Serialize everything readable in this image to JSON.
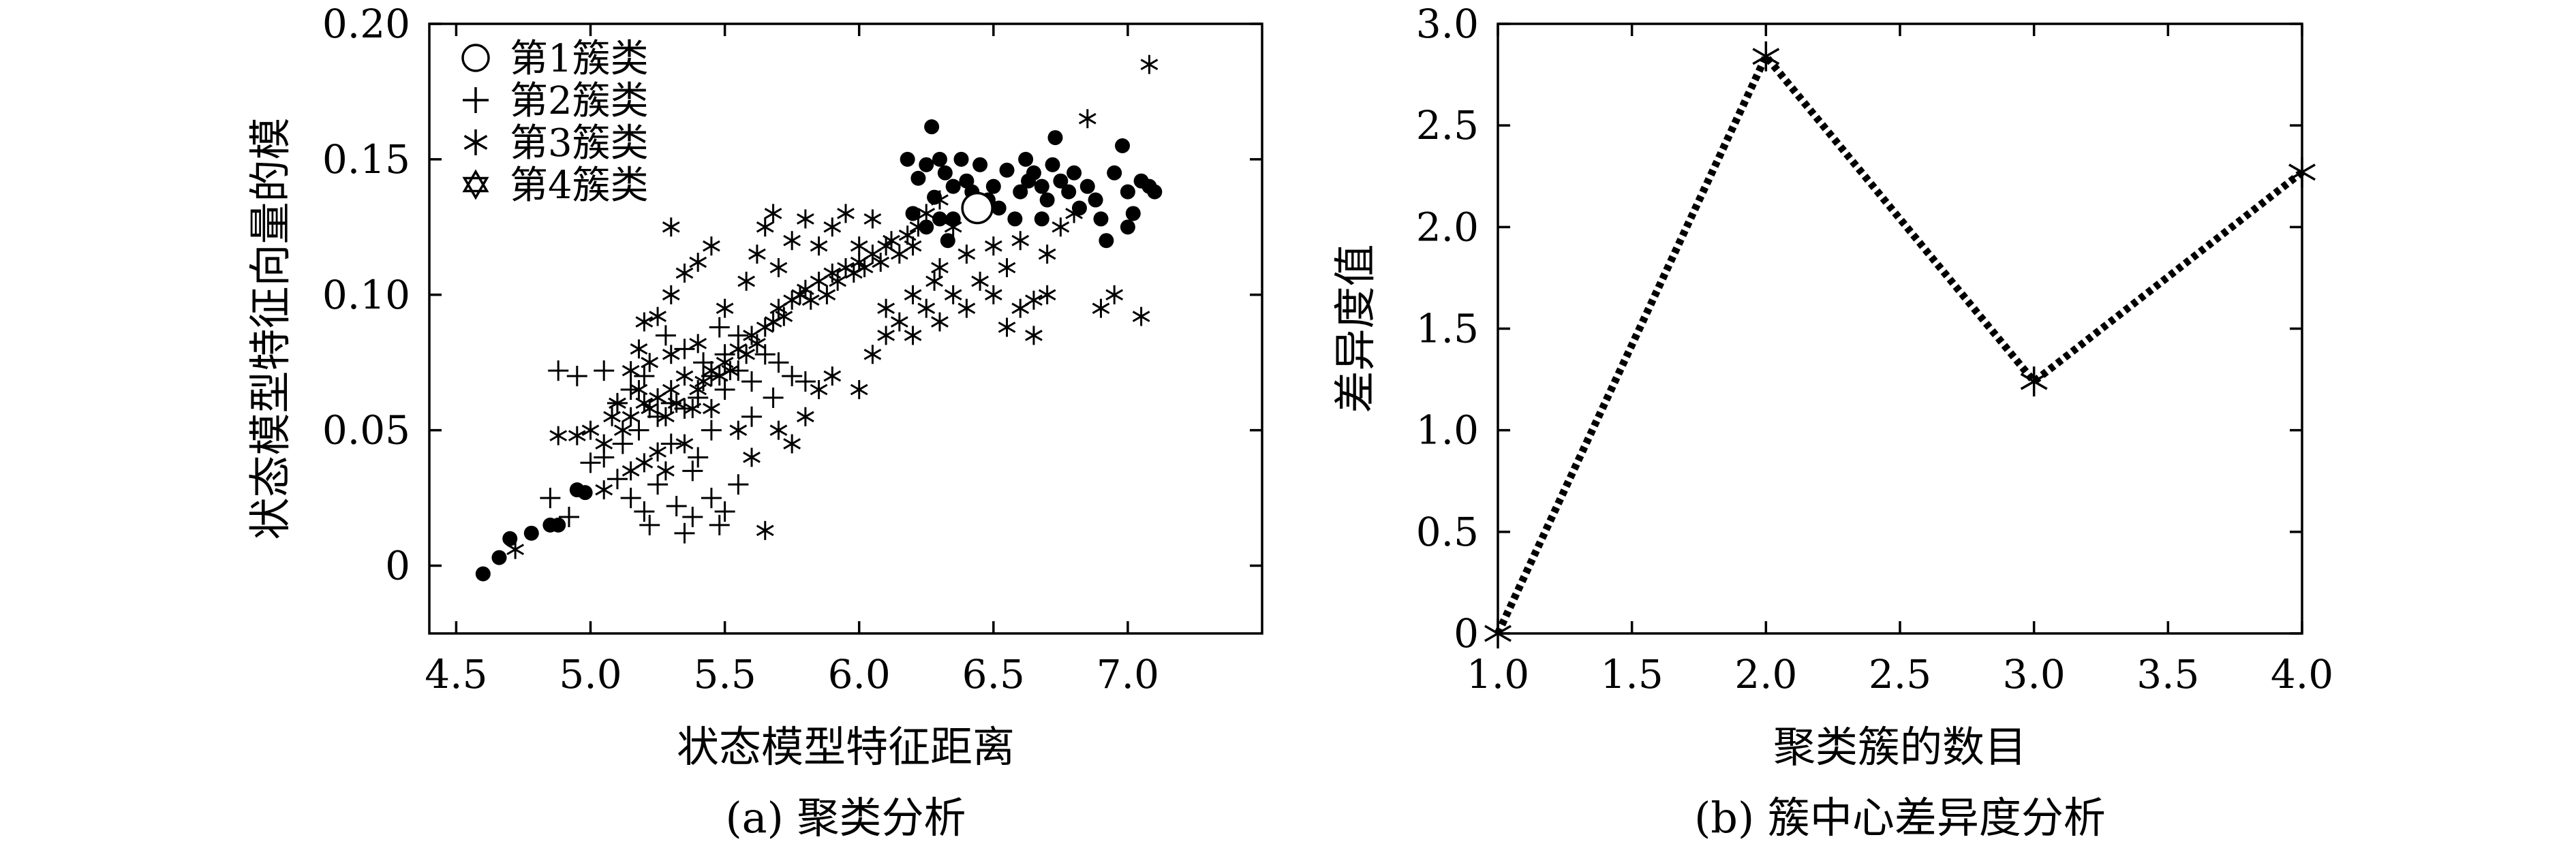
{
  "chart_data": [
    {
      "type": "scatter",
      "caption": "(a) 聚类分析",
      "xlabel": "状态模型特征距离",
      "ylabel": "状态模型特征向量的模",
      "xlim": [
        4.4,
        7.5
      ],
      "ylim": [
        -0.025,
        0.2
      ],
      "xticks": [
        "4.5",
        "5.0",
        "5.5",
        "6.0",
        "6.5",
        "7.0"
      ],
      "xtick_values": [
        4.5,
        5.0,
        5.5,
        6.0,
        6.5,
        7.0
      ],
      "yticks": [
        "0",
        "0.05",
        "0.10",
        "0.15",
        "0.20"
      ],
      "ytick_values": [
        0,
        0.05,
        0.1,
        0.15,
        0.2
      ],
      "legend_position": "top-left",
      "series": [
        {
          "name": "第1簇类",
          "marker": "circle",
          "centroid": [
            [
              6.44,
              0.132
            ]
          ],
          "points": [
            [
              4.6,
              -0.003
            ],
            [
              4.66,
              0.003
            ],
            [
              4.7,
              0.01
            ],
            [
              4.78,
              0.012
            ],
            [
              4.85,
              0.015
            ],
            [
              4.88,
              0.015
            ],
            [
              4.95,
              0.028
            ],
            [
              4.98,
              0.027
            ],
            [
              6.18,
              0.15
            ],
            [
              6.22,
              0.143
            ],
            [
              6.25,
              0.148
            ],
            [
              6.27,
              0.162
            ],
            [
              6.3,
              0.15
            ],
            [
              6.32,
              0.145
            ],
            [
              6.35,
              0.14
            ],
            [
              6.38,
              0.15
            ],
            [
              6.2,
              0.13
            ],
            [
              6.25,
              0.125
            ],
            [
              6.3,
              0.128
            ],
            [
              6.4,
              0.142
            ],
            [
              6.45,
              0.148
            ],
            [
              6.5,
              0.14
            ],
            [
              6.55,
              0.146
            ],
            [
              6.6,
              0.138
            ],
            [
              6.62,
              0.15
            ],
            [
              6.65,
              0.145
            ],
            [
              6.68,
              0.14
            ],
            [
              6.7,
              0.135
            ],
            [
              6.72,
              0.148
            ],
            [
              6.75,
              0.142
            ],
            [
              6.78,
              0.138
            ],
            [
              6.8,
              0.145
            ],
            [
              6.82,
              0.132
            ],
            [
              6.85,
              0.14
            ],
            [
              6.88,
              0.135
            ],
            [
              6.9,
              0.128
            ],
            [
              6.95,
              0.145
            ],
            [
              6.98,
              0.155
            ],
            [
              7.0,
              0.138
            ],
            [
              7.02,
              0.13
            ],
            [
              7.05,
              0.142
            ],
            [
              7.08,
              0.14
            ],
            [
              7.1,
              0.138
            ],
            [
              6.58,
              0.128
            ],
            [
              6.48,
              0.135
            ],
            [
              6.35,
              0.128
            ],
            [
              6.42,
              0.138
            ],
            [
              6.52,
              0.132
            ],
            [
              6.63,
              0.142
            ],
            [
              6.28,
              0.136
            ],
            [
              6.33,
              0.12
            ],
            [
              6.73,
              0.158
            ],
            [
              6.68,
              0.128
            ],
            [
              6.92,
              0.12
            ],
            [
              7.0,
              0.125
            ]
          ]
        },
        {
          "name": "第2簇类",
          "marker": "plus",
          "points": [
            [
              4.88,
              0.072
            ],
            [
              4.95,
              0.07
            ],
            [
              5.05,
              0.072
            ],
            [
              5.1,
              0.06
            ],
            [
              5.15,
              0.065
            ],
            [
              5.2,
              0.07
            ],
            [
              5.12,
              0.045
            ],
            [
              5.18,
              0.05
            ],
            [
              5.25,
              0.055
            ],
            [
              5.3,
              0.06
            ],
            [
              5.35,
              0.058
            ],
            [
              5.4,
              0.062
            ],
            [
              5.45,
              0.07
            ],
            [
              5.5,
              0.065
            ],
            [
              5.55,
              0.072
            ],
            [
              5.6,
              0.068
            ],
            [
              5.65,
              0.078
            ],
            [
              5.7,
              0.075
            ],
            [
              5.28,
              0.085
            ],
            [
              5.35,
              0.08
            ],
            [
              5.42,
              0.075
            ],
            [
              5.48,
              0.088
            ],
            [
              5.5,
              0.078
            ],
            [
              5.55,
              0.085
            ],
            [
              5.1,
              0.032
            ],
            [
              5.15,
              0.025
            ],
            [
              5.2,
              0.02
            ],
            [
              5.25,
              0.03
            ],
            [
              5.32,
              0.022
            ],
            [
              5.38,
              0.018
            ],
            [
              5.45,
              0.025
            ],
            [
              5.5,
              0.02
            ],
            [
              5.55,
              0.03
            ],
            [
              5.22,
              0.015
            ],
            [
              5.35,
              0.012
            ],
            [
              5.48,
              0.015
            ],
            [
              4.85,
              0.025
            ],
            [
              4.92,
              0.018
            ],
            [
              5.05,
              0.04
            ],
            [
              5.3,
              0.045
            ],
            [
              5.4,
              0.04
            ],
            [
              5.45,
              0.05
            ],
            [
              5.6,
              0.055
            ],
            [
              5.68,
              0.062
            ],
            [
              5.75,
              0.07
            ],
            [
              5.8,
              0.068
            ],
            [
              5.0,
              0.038
            ],
            [
              5.38,
              0.035
            ]
          ]
        },
        {
          "name": "第3簇类",
          "marker": "asterisk",
          "points": [
            [
              4.72,
              0.006
            ],
            [
              4.88,
              0.048
            ],
            [
              5.0,
              0.05
            ],
            [
              5.05,
              0.045
            ],
            [
              5.08,
              0.055
            ],
            [
              5.1,
              0.06
            ],
            [
              5.12,
              0.05
            ],
            [
              5.15,
              0.055
            ],
            [
              5.18,
              0.065
            ],
            [
              5.2,
              0.06
            ],
            [
              5.22,
              0.058
            ],
            [
              5.25,
              0.062
            ],
            [
              5.28,
              0.055
            ],
            [
              5.3,
              0.065
            ],
            [
              5.32,
              0.06
            ],
            [
              5.35,
              0.07
            ],
            [
              5.38,
              0.058
            ],
            [
              5.4,
              0.065
            ],
            [
              5.42,
              0.068
            ],
            [
              5.45,
              0.072
            ],
            [
              5.48,
              0.07
            ],
            [
              5.5,
              0.075
            ],
            [
              5.52,
              0.072
            ],
            [
              5.55,
              0.08
            ],
            [
              5.58,
              0.078
            ],
            [
              5.6,
              0.085
            ],
            [
              5.62,
              0.082
            ],
            [
              5.65,
              0.088
            ],
            [
              5.68,
              0.09
            ],
            [
              5.7,
              0.095
            ],
            [
              5.72,
              0.092
            ],
            [
              5.75,
              0.098
            ],
            [
              5.78,
              0.1
            ],
            [
              5.8,
              0.102
            ],
            [
              5.82,
              0.098
            ],
            [
              5.85,
              0.105
            ],
            [
              5.88,
              0.1
            ],
            [
              5.9,
              0.108
            ],
            [
              5.92,
              0.105
            ],
            [
              5.95,
              0.11
            ],
            [
              5.98,
              0.108
            ],
            [
              6.0,
              0.112
            ],
            [
              6.02,
              0.11
            ],
            [
              6.05,
              0.115
            ],
            [
              6.08,
              0.112
            ],
            [
              6.1,
              0.118
            ],
            [
              6.12,
              0.12
            ],
            [
              6.15,
              0.115
            ],
            [
              6.18,
              0.122
            ],
            [
              6.2,
              0.118
            ],
            [
              6.22,
              0.125
            ],
            [
              5.18,
              0.08
            ],
            [
              5.2,
              0.09
            ],
            [
              5.25,
              0.092
            ],
            [
              5.3,
              0.1
            ],
            [
              5.35,
              0.108
            ],
            [
              5.4,
              0.112
            ],
            [
              5.45,
              0.118
            ],
            [
              5.3,
              0.125
            ],
            [
              5.5,
              0.095
            ],
            [
              5.58,
              0.105
            ],
            [
              5.62,
              0.115
            ],
            [
              5.65,
              0.125
            ],
            [
              5.68,
              0.13
            ],
            [
              5.7,
              0.11
            ],
            [
              5.75,
              0.12
            ],
            [
              5.8,
              0.128
            ],
            [
              5.85,
              0.118
            ],
            [
              5.9,
              0.125
            ],
            [
              5.95,
              0.13
            ],
            [
              6.0,
              0.118
            ],
            [
              6.05,
              0.128
            ],
            [
              5.6,
              0.04
            ],
            [
              5.65,
              0.013
            ],
            [
              5.55,
              0.05
            ],
            [
              5.7,
              0.05
            ],
            [
              5.75,
              0.045
            ],
            [
              5.8,
              0.055
            ],
            [
              5.85,
              0.065
            ],
            [
              5.9,
              0.07
            ],
            [
              6.0,
              0.065
            ],
            [
              6.05,
              0.078
            ],
            [
              6.1,
              0.085
            ],
            [
              6.15,
              0.09
            ],
            [
              6.2,
              0.085
            ],
            [
              6.25,
              0.095
            ],
            [
              6.3,
              0.09
            ],
            [
              6.35,
              0.1
            ],
            [
              6.4,
              0.095
            ],
            [
              6.45,
              0.105
            ],
            [
              6.5,
              0.1
            ],
            [
              6.55,
              0.11
            ],
            [
              6.6,
              0.095
            ],
            [
              6.65,
              0.085
            ],
            [
              6.7,
              0.115
            ],
            [
              6.75,
              0.125
            ],
            [
              6.8,
              0.13
            ],
            [
              6.85,
              0.165
            ],
            [
              6.9,
              0.095
            ],
            [
              6.95,
              0.1
            ],
            [
              7.05,
              0.092
            ],
            [
              7.08,
              0.185
            ],
            [
              6.6,
              0.12
            ],
            [
              6.7,
              0.1
            ],
            [
              6.5,
              0.118
            ],
            [
              6.3,
              0.11
            ],
            [
              6.4,
              0.115
            ],
            [
              6.2,
              0.1
            ],
            [
              6.1,
              0.095
            ],
            [
              5.15,
              0.035
            ],
            [
              5.05,
              0.028
            ],
            [
              4.95,
              0.048
            ],
            [
              5.2,
              0.038
            ],
            [
              5.25,
              0.042
            ],
            [
              5.35,
              0.045
            ],
            [
              5.45,
              0.058
            ],
            [
              5.28,
              0.035
            ],
            [
              5.15,
              0.072
            ],
            [
              5.22,
              0.075
            ],
            [
              5.3,
              0.078
            ],
            [
              5.4,
              0.082
            ],
            [
              6.25,
              0.13
            ],
            [
              6.3,
              0.135
            ],
            [
              6.35,
              0.125
            ],
            [
              6.28,
              0.105
            ],
            [
              6.65,
              0.098
            ],
            [
              6.55,
              0.088
            ]
          ]
        },
        {
          "name": "第4簇类",
          "marker": "star",
          "points": []
        }
      ]
    },
    {
      "type": "line",
      "caption": "(b) 簇中心差异度分析",
      "xlabel": "聚类簇的数目",
      "ylabel": "差异度值",
      "xlim": [
        1.0,
        4.0
      ],
      "ylim": [
        0,
        3.0
      ],
      "xticks": [
        "1.0",
        "1.5",
        "2.0",
        "2.5",
        "3.0",
        "3.5",
        "4.0"
      ],
      "xtick_values": [
        1.0,
        1.5,
        2.0,
        2.5,
        3.0,
        3.5,
        4.0
      ],
      "yticks": [
        "0",
        "0.5",
        "1.0",
        "1.5",
        "2.0",
        "2.5",
        "3.0"
      ],
      "ytick_values": [
        0,
        0.5,
        1.0,
        1.5,
        2.0,
        2.5,
        3.0
      ],
      "series": [
        {
          "marker": "asterisk",
          "line_style": "dotted",
          "x": [
            1.0,
            2.0,
            3.0,
            4.0
          ],
          "y": [
            0.0,
            2.84,
            1.24,
            2.27
          ]
        }
      ]
    }
  ]
}
